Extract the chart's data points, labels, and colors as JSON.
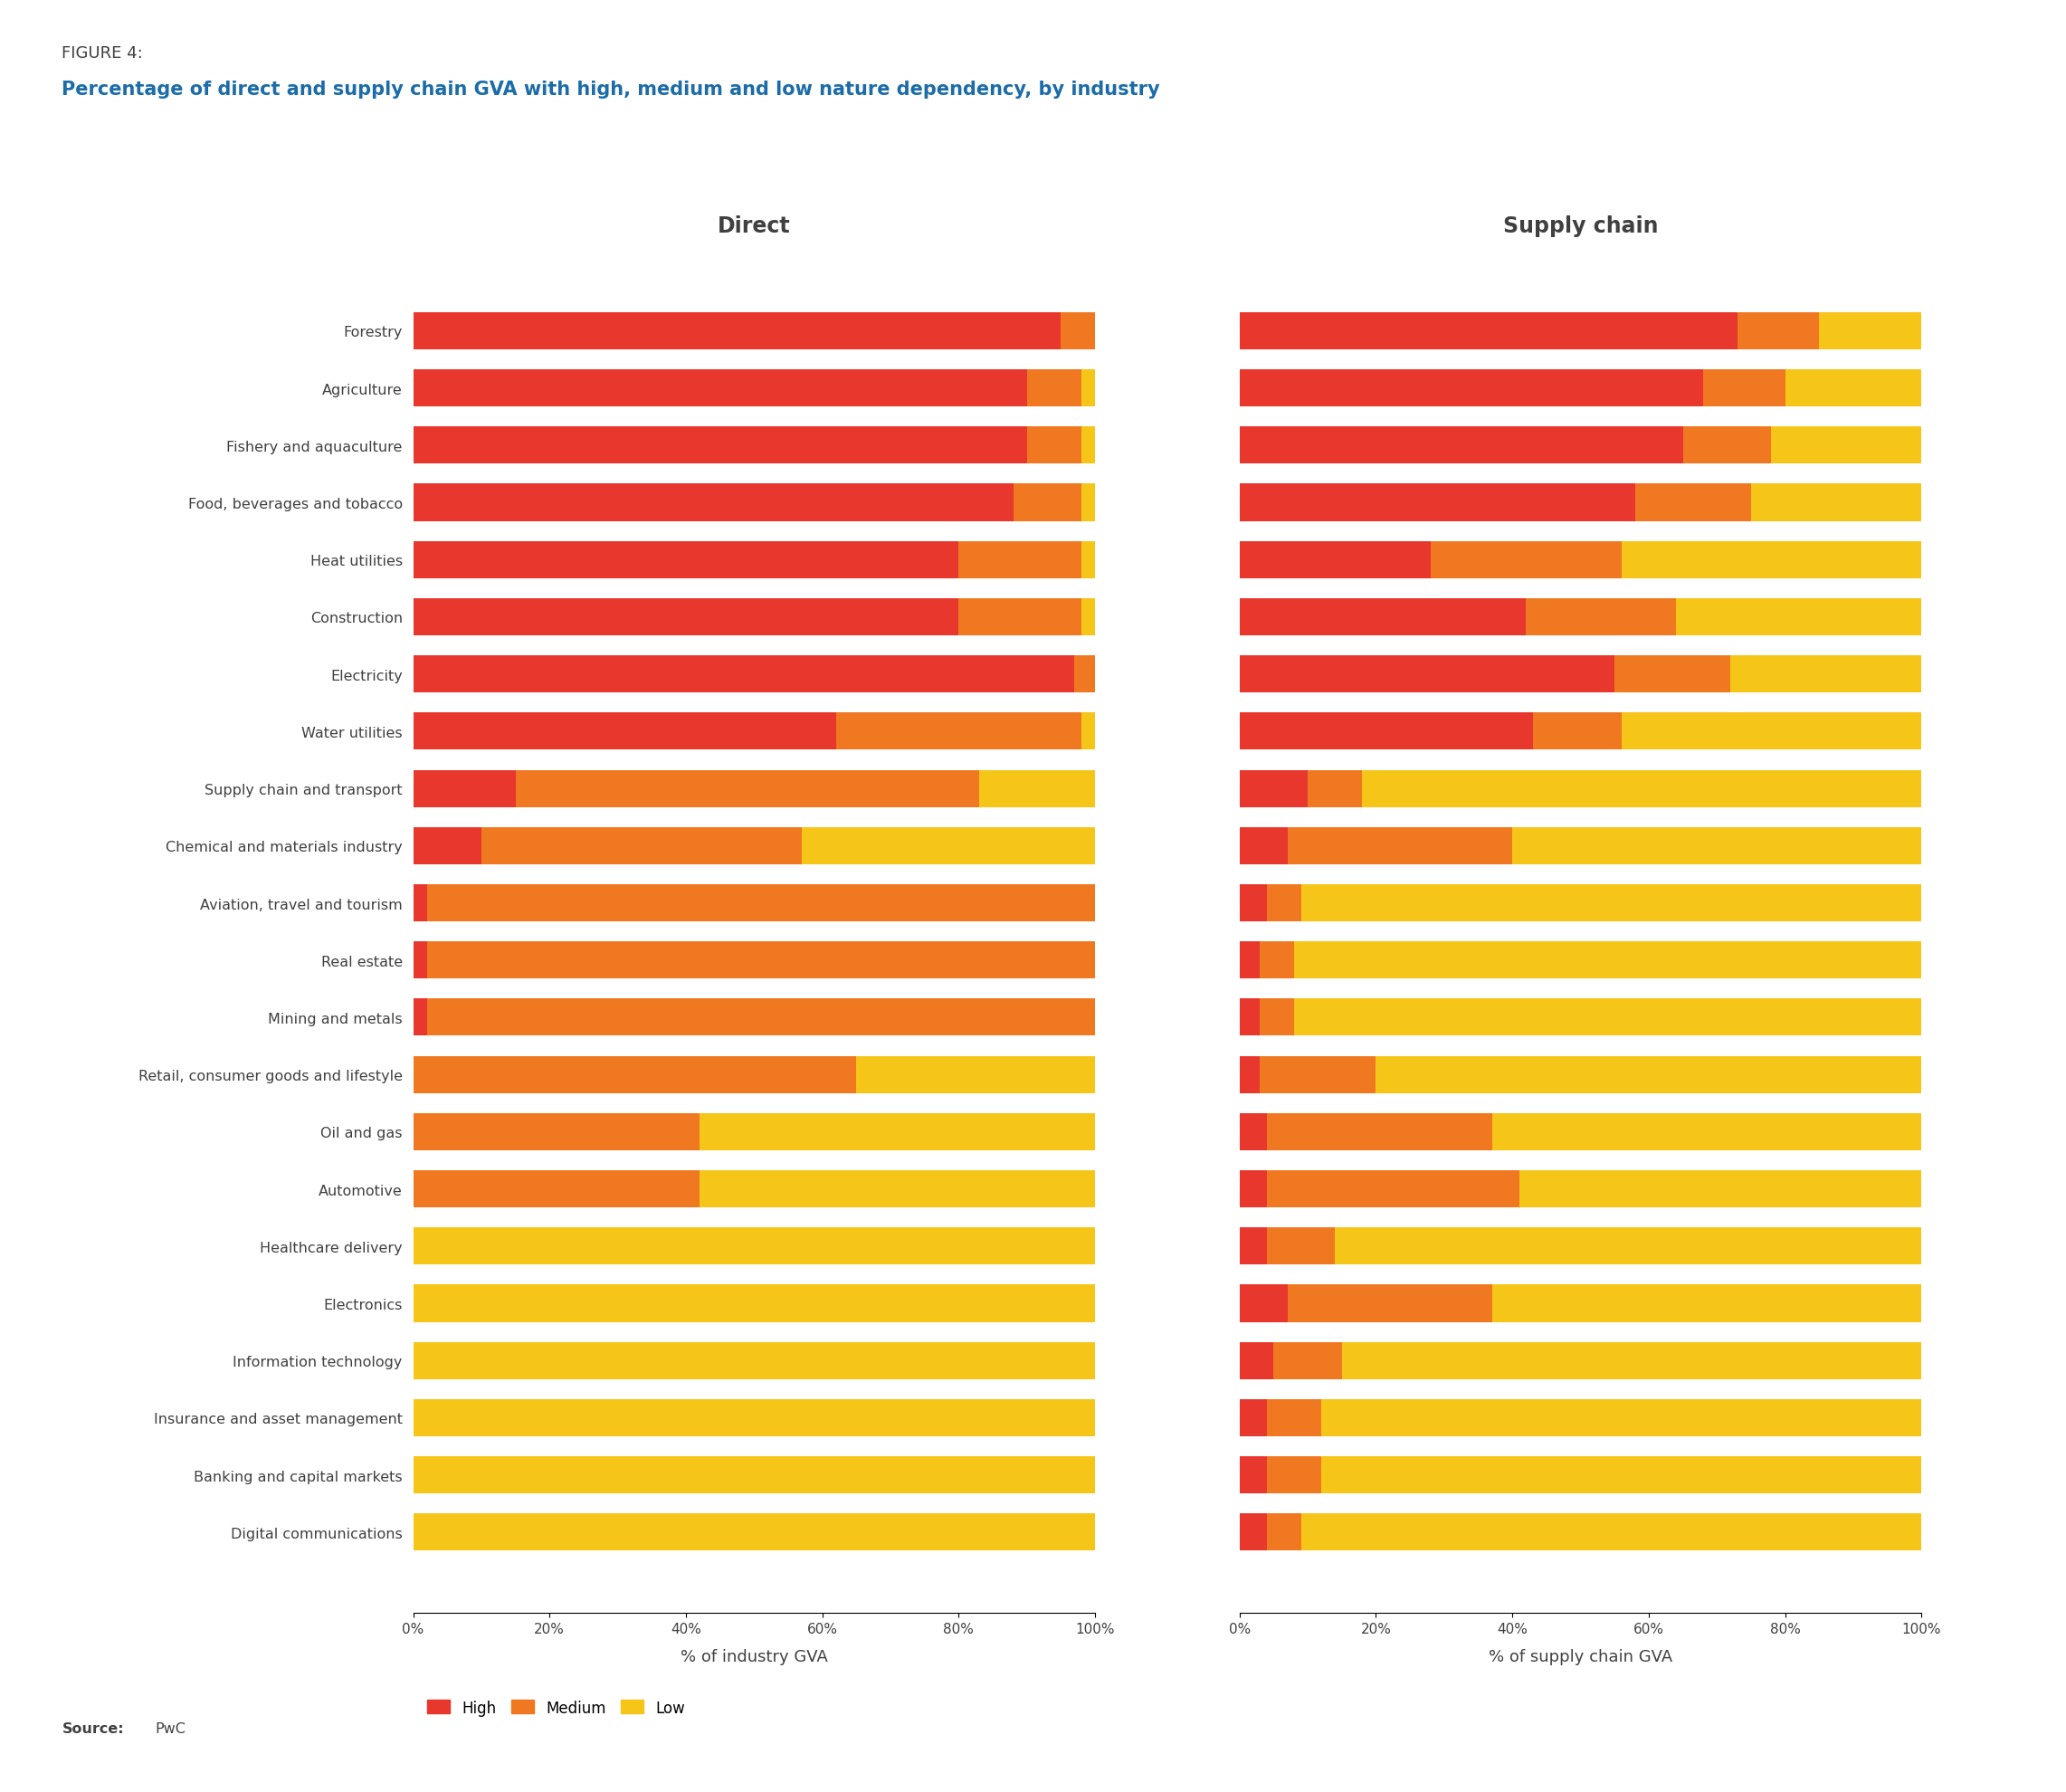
{
  "figure_label": "FIGURE 4:",
  "title": "Percentage of direct and supply chain GVA with high, medium and low nature dependency, by industry",
  "title_color": "#1B6CA8",
  "figure_label_color": "#404040",
  "categories": [
    "Forestry",
    "Agriculture",
    "Fishery and aquaculture",
    "Food, beverages and tobacco",
    "Heat utilities",
    "Construction",
    "Electricity",
    "Water utilities",
    "Supply chain and transport",
    "Chemical and materials industry",
    "Aviation, travel and tourism",
    "Real estate",
    "Mining and metals",
    "Retail, consumer goods and lifestyle",
    "Oil and gas",
    "Automotive",
    "Healthcare delivery",
    "Electronics",
    "Information technology",
    "Insurance and asset management",
    "Banking and capital markets",
    "Digital communications"
  ],
  "direct": {
    "high": [
      95,
      90,
      90,
      88,
      80,
      80,
      97,
      62,
      15,
      10,
      2,
      2,
      2,
      0,
      0,
      0,
      0,
      0,
      0,
      0,
      0,
      0
    ],
    "medium": [
      5,
      8,
      8,
      10,
      18,
      18,
      3,
      36,
      68,
      47,
      98,
      98,
      98,
      65,
      42,
      42,
      0,
      0,
      0,
      0,
      0,
      0
    ],
    "low": [
      0,
      2,
      2,
      2,
      2,
      2,
      0,
      2,
      17,
      43,
      0,
      0,
      0,
      35,
      58,
      58,
      100,
      100,
      100,
      100,
      100,
      100
    ]
  },
  "supply_chain": {
    "high": [
      73,
      68,
      65,
      58,
      28,
      42,
      55,
      43,
      10,
      7,
      4,
      3,
      3,
      3,
      4,
      4,
      4,
      7,
      5,
      4,
      4,
      4
    ],
    "medium": [
      12,
      12,
      13,
      17,
      28,
      22,
      17,
      13,
      8,
      33,
      5,
      5,
      5,
      17,
      33,
      37,
      10,
      30,
      10,
      8,
      8,
      5
    ],
    "low": [
      15,
      20,
      22,
      25,
      44,
      36,
      28,
      44,
      82,
      60,
      91,
      92,
      92,
      80,
      63,
      59,
      86,
      63,
      85,
      88,
      88,
      91
    ]
  },
  "colors": {
    "high": "#E8372C",
    "medium": "#F07820",
    "low": "#F5C518"
  },
  "xlabel_direct": "% of industry GVA",
  "xlabel_supply": "% of supply chain GVA",
  "direct_label": "Direct",
  "supply_label": "Supply chain",
  "legend_labels": [
    "High",
    "Medium",
    "Low"
  ],
  "source": "PwC",
  "bar_height": 0.65
}
